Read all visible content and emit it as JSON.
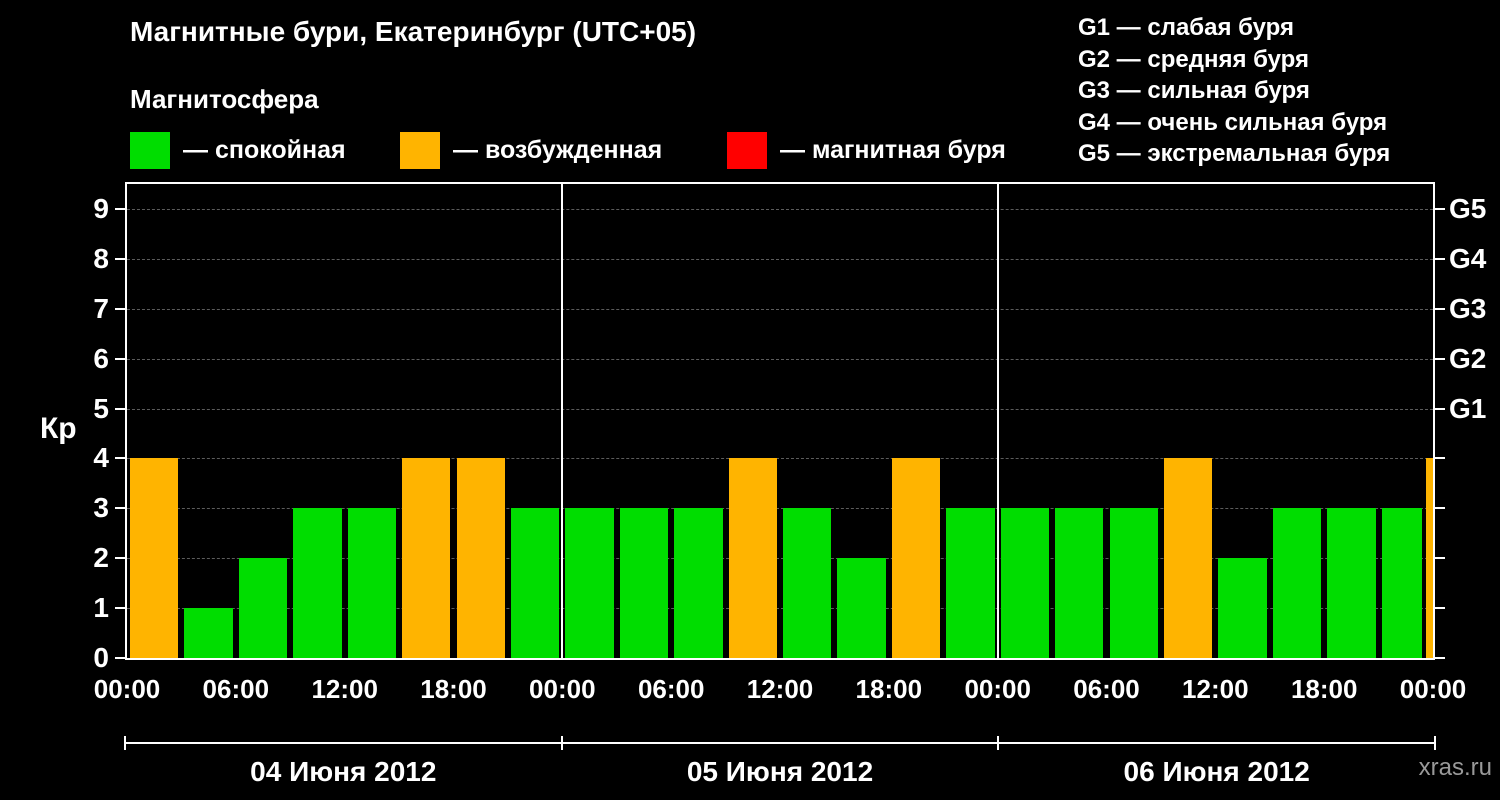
{
  "header": {
    "title": "Магнитные бури, Екатеринбург (UTC+05)",
    "subtitle": "Магнитосфера"
  },
  "legend": {
    "items": [
      {
        "label": "— спокойная",
        "color": "#00dd00",
        "meaning": "quiet"
      },
      {
        "label": "— возбужденная",
        "color": "#ffb400",
        "meaning": "excited"
      },
      {
        "label": "— магнитная буря",
        "color": "#ff0000",
        "meaning": "storm"
      }
    ]
  },
  "storm_scale": [
    {
      "label": "G1 — слабая буря"
    },
    {
      "label": "G2 — средняя буря"
    },
    {
      "label": "G3 — сильная буря"
    },
    {
      "label": "G4 — очень сильная буря"
    },
    {
      "label": "G5 — экстремальная буря"
    }
  ],
  "chart_data": {
    "type": "bar",
    "title": "Магнитные бури, Екатеринбург (UTC+05)",
    "ylabel": "Кр",
    "ylim": [
      0,
      9.5
    ],
    "yticks": [
      0,
      1,
      2,
      3,
      4,
      5,
      6,
      7,
      8,
      9
    ],
    "right_axis": [
      {
        "value": 5,
        "label": "G1"
      },
      {
        "value": 6,
        "label": "G2"
      },
      {
        "value": 7,
        "label": "G3"
      },
      {
        "value": 8,
        "label": "G4"
      },
      {
        "value": 9,
        "label": "G5"
      }
    ],
    "x_tick_labels": [
      "00:00",
      "06:00",
      "12:00",
      "18:00",
      "00:00",
      "06:00",
      "12:00",
      "18:00",
      "00:00",
      "06:00",
      "12:00",
      "18:00",
      "00:00"
    ],
    "bar_interval_hours": 3,
    "days": [
      {
        "date": "04 Июня 2012",
        "values": [
          4,
          1,
          2,
          3,
          3,
          4,
          4,
          3
        ]
      },
      {
        "date": "05 Июня 2012",
        "values": [
          3,
          3,
          3,
          4,
          3,
          2,
          4,
          3
        ]
      },
      {
        "date": "06 Июня 2012",
        "values": [
          3,
          3,
          3,
          4,
          2,
          3,
          3,
          3
        ]
      }
    ],
    "trailing_partial_value": 4,
    "colors": {
      "quiet": "#00dd00",
      "excited": "#ffb400",
      "storm": "#ff0000"
    },
    "color_rule": "Kp<=3 quiet(green), Kp=4 excited(orange), Kp>=5 storm(red)",
    "grid": true,
    "legend_position": "top"
  },
  "watermark": "xras.ru"
}
